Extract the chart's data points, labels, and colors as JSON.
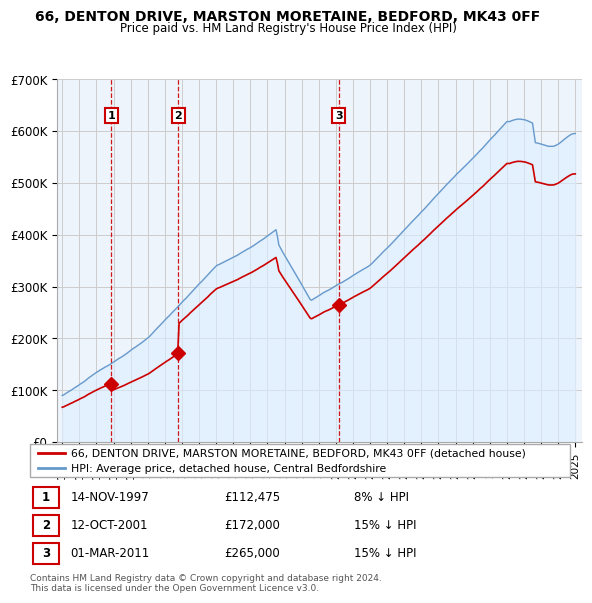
{
  "title": "66, DENTON DRIVE, MARSTON MORETAINE, BEDFORD, MK43 0FF",
  "subtitle": "Price paid vs. HM Land Registry's House Price Index (HPI)",
  "sale_labels_info": [
    {
      "num": "1",
      "date": "14-NOV-1997",
      "price": "£112,475",
      "pct": "8% ↓ HPI"
    },
    {
      "num": "2",
      "date": "12-OCT-2001",
      "price": "£172,000",
      "pct": "15% ↓ HPI"
    },
    {
      "num": "3",
      "date": "01-MAR-2011",
      "price": "£265,000",
      "pct": "15% ↓ HPI"
    }
  ],
  "legend_line1": "66, DENTON DRIVE, MARSTON MORETAINE, BEDFORD, MK43 0FF (detached house)",
  "legend_line2": "HPI: Average price, detached house, Central Bedfordshire",
  "footer": "Contains HM Land Registry data © Crown copyright and database right 2024.\nThis data is licensed under the Open Government Licence v3.0.",
  "ylim": [
    0,
    700000
  ],
  "yticks": [
    0,
    100000,
    200000,
    300000,
    400000,
    500000,
    600000,
    700000
  ],
  "ytick_labels": [
    "£0",
    "£100K",
    "£200K",
    "£300K",
    "£400K",
    "£500K",
    "£600K",
    "£700K"
  ],
  "sale_line_color": "#cc0000",
  "hpi_line_color": "#6699cc",
  "hpi_fill_color": "#ddeeff",
  "dot_color": "#cc0000",
  "dashed_line_color": "#cc0000",
  "label_box_color": "#cc0000",
  "grid_color": "#cccccc",
  "background_color": "#ffffff",
  "chart_bg_color": "#eef4fb",
  "sale_dates_num": [
    1997.875,
    2001.792,
    2011.167
  ],
  "sale_prices": [
    112475,
    172000,
    265000
  ]
}
